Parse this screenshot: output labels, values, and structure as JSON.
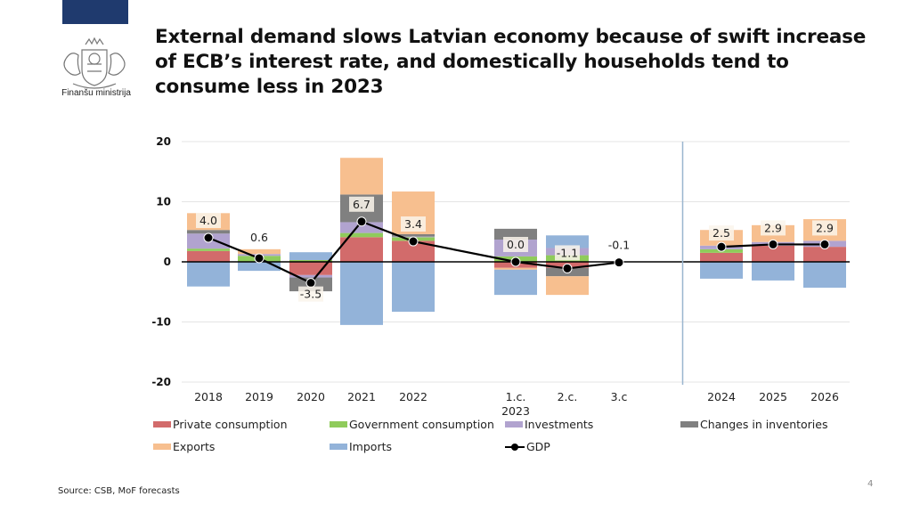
{
  "header": {
    "logo_text": "Finanšu ministrija",
    "title": "External demand slows Latvian economy because of swift increase of ECB’s interest rate, and domestically households tend to consume less in 2023"
  },
  "footer": {
    "source": "Source: CSB, MoF forecasts",
    "page_number": "4"
  },
  "chart_data": {
    "type": "bar",
    "stacked": true,
    "title": "",
    "xlabel": "",
    "ylabel": "",
    "ylim": [
      -20,
      20
    ],
    "yticks": [
      20,
      10,
      0,
      -10,
      -20
    ],
    "grid": true,
    "legend_position": "bottom",
    "categories": [
      "2018",
      "2019",
      "2020",
      "2021",
      "2022",
      "1.c.\n2023",
      "2.c.",
      "3.c",
      "2024",
      "2025",
      "2026"
    ],
    "category_labels": [
      [
        "2018"
      ],
      [
        "2019"
      ],
      [
        "2020"
      ],
      [
        "2021"
      ],
      [
        "2022"
      ],
      [
        "1.c.",
        "2023"
      ],
      [
        "2.c."
      ],
      [
        "3.c"
      ],
      [
        "2024"
      ],
      [
        "2025"
      ],
      [
        "2026"
      ]
    ],
    "series": [
      {
        "name": "Private consumption",
        "color": "#d26b6b",
        "values": [
          1.8,
          0.0,
          -2.2,
          4.1,
          3.5,
          -1.0,
          -1.0,
          null,
          1.5,
          2.7,
          2.5
        ]
      },
      {
        "name": "Government consumption",
        "color": "#8fcb5b",
        "values": [
          0.4,
          1.0,
          0.3,
          0.7,
          0.6,
          0.9,
          1.1,
          null,
          0.6,
          0.0,
          0.0
        ]
      },
      {
        "name": "Investments",
        "color": "#b1a3cf",
        "values": [
          2.5,
          0.3,
          -0.4,
          1.8,
          0.1,
          2.8,
          1.2,
          null,
          0.6,
          0.6,
          1.0
        ]
      },
      {
        "name": "Changes in inventories",
        "color": "#808080",
        "values": [
          0.6,
          0.0,
          -2.3,
          4.6,
          0.4,
          1.8,
          -1.4,
          null,
          0.0,
          0.0,
          0.0
        ]
      },
      {
        "name": "Exports",
        "color": "#f7bf8f",
        "values": [
          2.8,
          0.8,
          0.0,
          6.1,
          7.1,
          -0.3,
          -3.1,
          null,
          2.6,
          2.8,
          3.6
        ]
      },
      {
        "name": "Imports",
        "color": "#93b3d9",
        "values": [
          -4.1,
          -1.5,
          1.3,
          -10.5,
          -8.3,
          -4.2,
          2.1,
          null,
          -2.8,
          -3.1,
          -4.3
        ]
      }
    ],
    "line_series": {
      "name": "GDP",
      "color": "#000000",
      "values": [
        4.0,
        0.6,
        -3.5,
        6.7,
        3.4,
        0.0,
        -1.1,
        -0.1,
        2.5,
        2.9,
        2.9
      ],
      "labels": [
        "4.0",
        "0.6",
        "-3.5",
        "6.7",
        "3.4",
        "0.0",
        "-1.1",
        "-0.1",
        "2.5",
        "2.9",
        "2.9"
      ]
    },
    "legend": [
      {
        "name": "Private consumption",
        "color": "#d26b6b",
        "kind": "box"
      },
      {
        "name": "Government consumption",
        "color": "#8fcb5b",
        "kind": "box"
      },
      {
        "name": "Investments",
        "color": "#b1a3cf",
        "kind": "box"
      },
      {
        "name": "Changes in inventories",
        "color": "#808080",
        "kind": "box"
      },
      {
        "name": "Exports",
        "color": "#f7bf8f",
        "kind": "box"
      },
      {
        "name": "Imports",
        "color": "#93b3d9",
        "kind": "box"
      },
      {
        "name": "GDP",
        "color": "#000000",
        "kind": "line"
      }
    ],
    "separator_after_category": "3.c"
  }
}
